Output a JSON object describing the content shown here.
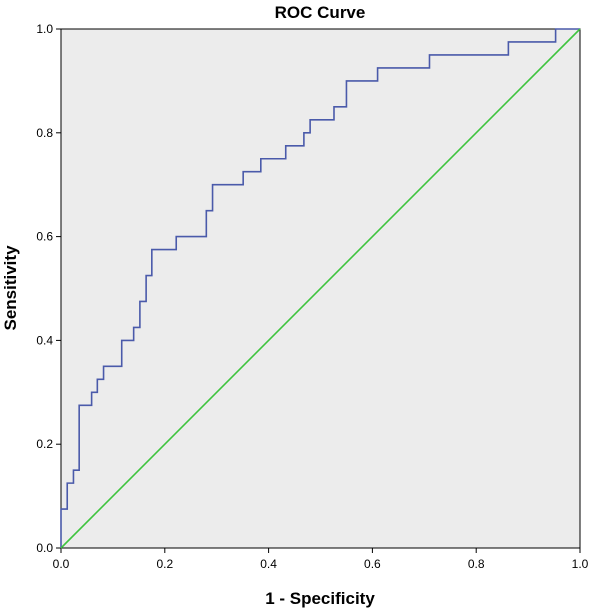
{
  "chart_data": {
    "type": "line",
    "title": "ROC Curve",
    "xlabel": "1 - Specificity",
    "ylabel": "Sensitivity",
    "xlim": [
      0.0,
      1.0
    ],
    "ylim": [
      0.0,
      1.0
    ],
    "xticks": [
      "0.0",
      "0.2",
      "0.4",
      "0.6",
      "0.8",
      "1.0"
    ],
    "yticks": [
      "0.0",
      "0.2",
      "0.4",
      "0.6",
      "0.8",
      "1.0"
    ],
    "grid": false,
    "background_color": "#ececec",
    "series": [
      {
        "color": "#4a5aaa",
        "x": [
          0.0,
          0.0,
          0.012,
          0.012,
          0.024,
          0.024,
          0.035,
          0.035,
          0.059,
          0.059,
          0.07,
          0.07,
          0.082,
          0.082,
          0.117,
          0.117,
          0.14,
          0.14,
          0.152,
          0.152,
          0.164,
          0.164,
          0.175,
          0.175,
          0.222,
          0.222,
          0.28,
          0.28,
          0.292,
          0.292,
          0.351,
          0.351,
          0.385,
          0.385,
          0.433,
          0.433,
          0.468,
          0.468,
          0.48,
          0.48,
          0.526,
          0.526,
          0.55,
          0.55,
          0.61,
          0.61,
          0.71,
          0.71,
          0.862,
          0.862,
          0.953,
          0.953,
          1.0
        ],
        "y": [
          0.0,
          0.075,
          0.075,
          0.125,
          0.125,
          0.15,
          0.15,
          0.275,
          0.275,
          0.3,
          0.3,
          0.325,
          0.325,
          0.35,
          0.35,
          0.4,
          0.4,
          0.425,
          0.425,
          0.475,
          0.475,
          0.525,
          0.525,
          0.575,
          0.575,
          0.6,
          0.6,
          0.65,
          0.65,
          0.7,
          0.7,
          0.725,
          0.725,
          0.75,
          0.75,
          0.775,
          0.775,
          0.8,
          0.8,
          0.825,
          0.825,
          0.85,
          0.85,
          0.9,
          0.9,
          0.925,
          0.925,
          0.95,
          0.95,
          0.975,
          0.975,
          1.0,
          1.0
        ]
      },
      {
        "color": "#3ec43e",
        "x": [
          0.0,
          1.0
        ],
        "y": [
          0.0,
          1.0
        ]
      }
    ]
  }
}
